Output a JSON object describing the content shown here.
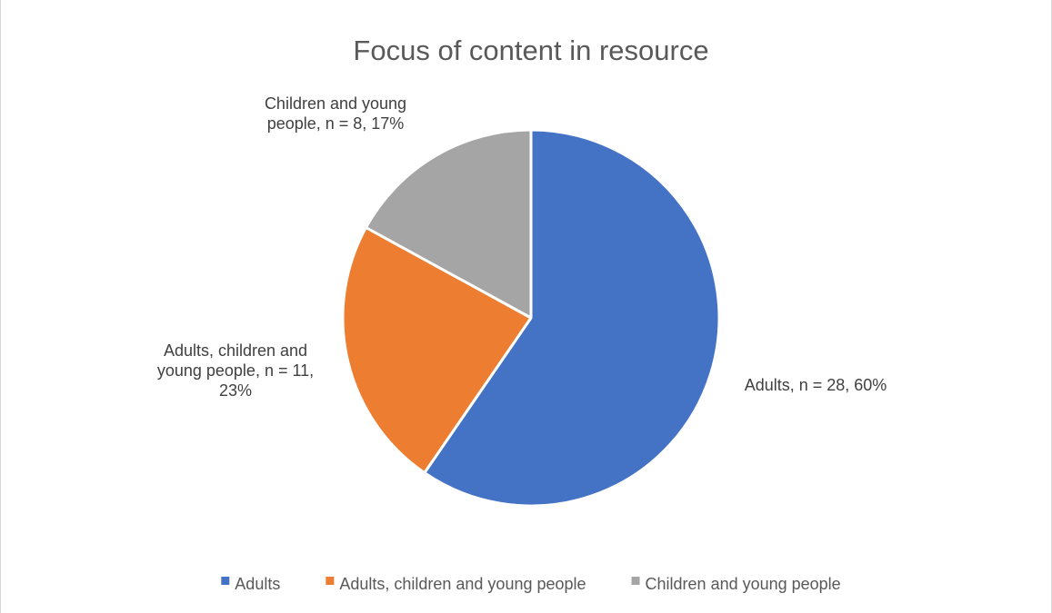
{
  "chart_data": {
    "type": "pie",
    "title": "Focus of content in resource",
    "categories": [
      "Adults",
      "Adults, children and young people",
      "Children and young people"
    ],
    "values": [
      28,
      11,
      8
    ],
    "percentages": [
      "60%",
      "23%",
      "17%"
    ],
    "data_labels": [
      [
        "Adults, n = 28, 60%"
      ],
      [
        "Adults, children and",
        "young people, n = 11,",
        "23%"
      ],
      [
        "Children and young",
        "people, n = 8, 17%"
      ]
    ],
    "colors": [
      "#4472C4",
      "#ED7D31",
      "#A5A5A5"
    ],
    "start_angle_deg": 0,
    "direction": "clockwise",
    "legend_position": "bottom"
  }
}
